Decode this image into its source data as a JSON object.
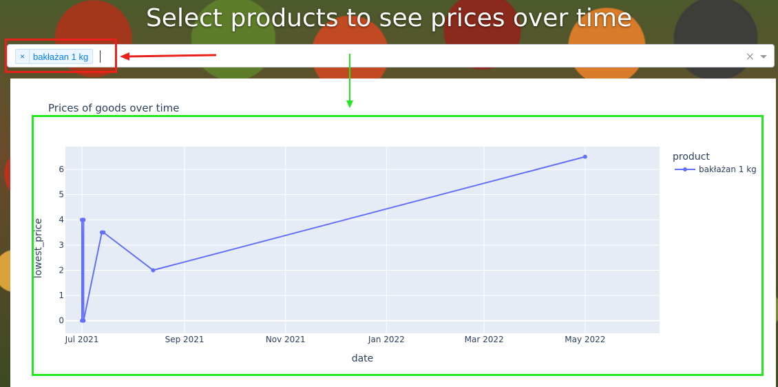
{
  "page": {
    "title": "Select products to see prices over time"
  },
  "dropdown": {
    "selected": [
      "bakłażan 1 kg"
    ],
    "remove_glyph": "×",
    "clear_glyph": "×"
  },
  "colors": {
    "series": "#636efa",
    "plot_bg": "#e5ecf6",
    "grid": "#ffffff",
    "annotation_red": "#e8221b",
    "annotation_green": "#22e61e"
  },
  "chart_data": {
    "type": "line",
    "title": "Prices of goods over time",
    "xlabel": "date",
    "ylabel": "lowest_price",
    "legend_title": "product",
    "legend_position": "right",
    "grid": true,
    "xlim": [
      "2021-06-21",
      "2022-06-15"
    ],
    "ylim": [
      -0.5,
      6.9
    ],
    "x_ticks": [
      {
        "date": "2021-07-01",
        "label": "Jul 2021"
      },
      {
        "date": "2021-09-01",
        "label": "Sep 2021"
      },
      {
        "date": "2021-11-01",
        "label": "Nov 2021"
      },
      {
        "date": "2022-01-01",
        "label": "Jan 2022"
      },
      {
        "date": "2022-03-01",
        "label": "Mar 2022"
      },
      {
        "date": "2022-05-01",
        "label": "May 2022"
      }
    ],
    "y_ticks": [
      0,
      1,
      2,
      3,
      4,
      5,
      6
    ],
    "series": [
      {
        "name": "bakłażan 1 kg",
        "points": [
          {
            "x": "2021-07-01",
            "y": 4.0
          },
          {
            "x": "2021-07-01",
            "y": 0.0
          },
          {
            "x": "2021-07-02",
            "y": 4.0
          },
          {
            "x": "2021-07-02",
            "y": 0.0
          },
          {
            "x": "2021-07-13",
            "y": 3.5
          },
          {
            "x": "2021-07-14",
            "y": 3.5
          },
          {
            "x": "2021-08-13",
            "y": 2.0
          },
          {
            "x": "2022-05-01",
            "y": 6.5
          }
        ]
      }
    ]
  }
}
